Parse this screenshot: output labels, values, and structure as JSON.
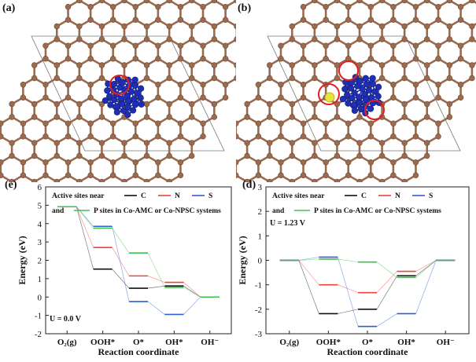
{
  "panels": {
    "a": {
      "label": "(a)"
    },
    "b": {
      "label": "(b)"
    },
    "e": {
      "label": "(e)"
    },
    "d": {
      "label": "(d)"
    }
  },
  "colors": {
    "carbon": "#9a6b4f",
    "carbon_stroke": "#6e4a35",
    "cobalt": "#1e2fb5",
    "highlight": "#e02020",
    "sulfur": "#e8e23a",
    "series_C": "#111111",
    "series_N": "#e8463a",
    "series_S": "#2e5fd0",
    "series_P": "#3cc24a",
    "connector": "#999999"
  },
  "chart_data": [
    {
      "type": "line",
      "panel": "(e)",
      "categories": [
        "O₂(g)",
        "OOH*",
        "O*",
        "OH*",
        "OH⁻"
      ],
      "xlabel": "Reaction coordinate",
      "ylabel": "Energy (eV)",
      "ylim": [
        -2,
        6
      ],
      "yticks": [
        -2,
        -1,
        0,
        1,
        2,
        3,
        4,
        5,
        6
      ],
      "legend_line1_prefix": "Active sites near",
      "legend_line2_prefix": "and",
      "legend_line2_suffix": "P sites in Co-AMC or Co-NPSC systems",
      "annotation": "U = 0.0 V",
      "series": [
        {
          "name": "C",
          "values": [
            4.92,
            1.52,
            0.48,
            0.6,
            0.0
          ]
        },
        {
          "name": "N",
          "values": [
            4.92,
            2.7,
            1.15,
            0.8,
            0.0
          ]
        },
        {
          "name": "S",
          "values": [
            4.92,
            3.85,
            -0.25,
            -0.95,
            0.0
          ]
        },
        {
          "name": "P",
          "values": [
            4.92,
            3.75,
            2.4,
            0.52,
            0.0
          ]
        }
      ]
    },
    {
      "type": "line",
      "panel": "(d)",
      "categories": [
        "O₂(g)",
        "OOH*",
        "O*",
        "OH*",
        "OH⁻"
      ],
      "xlabel": "Reaction coordinate",
      "ylabel": "Energy (eV)",
      "ylim": [
        -3,
        3
      ],
      "yticks": [
        -3,
        -2,
        -1,
        0,
        1,
        2,
        3
      ],
      "legend_line1_prefix": "Active sites near",
      "legend_line2_prefix": "and",
      "legend_line2_suffix": "P sites in Co-AMC or Co-NPSC systems",
      "annotation": "U = 1.23 V",
      "series": [
        {
          "name": "C",
          "values": [
            0.0,
            -2.18,
            -2.0,
            -0.63,
            0.0
          ]
        },
        {
          "name": "N",
          "values": [
            0.0,
            -1.0,
            -1.32,
            -0.45,
            0.0
          ]
        },
        {
          "name": "S",
          "values": [
            0.0,
            0.13,
            -2.7,
            -2.18,
            0.0
          ]
        },
        {
          "name": "P",
          "values": [
            0.0,
            0.05,
            -0.07,
            -0.7,
            0.0
          ]
        }
      ]
    }
  ]
}
